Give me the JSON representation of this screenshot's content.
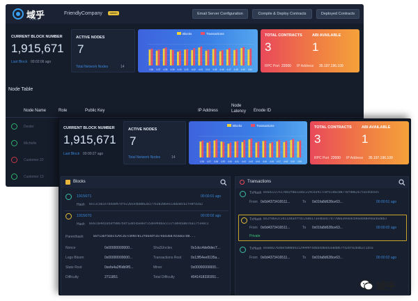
{
  "app": {
    "logo_text": "域乎",
    "logo_sub": "YUHU",
    "company": "FriendlyCompany",
    "badge": "admin"
  },
  "nav": {
    "email_btn": "Email Server Configuration",
    "compile_btn": "Compile & Deploy Contracts",
    "deployed_btn": "Deployed Contracts"
  },
  "back": {
    "block_title": "CURRENT BLOCK NUMBER",
    "block_number": "1,915,671",
    "last_block_label": "Last Block",
    "last_block_time": "00:02:06 ago",
    "nodes_title": "ACTIVE NODES",
    "nodes_count": "7",
    "total_nodes_label": "Total Network Nodes",
    "total_nodes_value": "14",
    "contracts_title": "TOTAL CONTRACTS",
    "contracts_value": "3",
    "abi_title": "ABI AVAILABLE",
    "abi_value": "1",
    "rpc_label": "RPC Port",
    "rpc_value": "22000",
    "ip_label": "IP Address",
    "ip_value": "35.197.196.109",
    "node_table_title": "Node Table",
    "node_cols": [
      "Node Name",
      "Role",
      "Public Key",
      "IP Address",
      "Node Latency",
      "Enode ID"
    ],
    "node_rows": [
      "Dexter",
      "Michelle",
      "Customer 22",
      "Customer 13"
    ]
  },
  "front": {
    "block_title": "CURRENT BLOCK NUMBER",
    "block_number": "1,915,671",
    "last_block_label": "Last Block",
    "last_block_time": "00:00:27 ago",
    "nodes_title": "ACTIVE NODES",
    "nodes_count": "7",
    "total_nodes_label": "Total Network Nodes",
    "total_nodes_value": "14",
    "contracts_title": "TOTAL CONTRACTS",
    "contracts_value": "3",
    "abi_title": "ABI AVAILABLE",
    "abi_value": "1",
    "rpc_label": "RPC Port",
    "rpc_value": "22000",
    "ip_label": "IP Address",
    "ip_value": "35.197.196.109",
    "blocks_title": "Blocks",
    "blocks": [
      {
        "number": "1915671",
        "time": "00:00:01 ago",
        "hash_label": "Hash",
        "hash": "0xc3ca61e7bda8974fe2201e4b00620177b30206ee13bba8c61fe8fd3a2"
      },
      {
        "number": "1915670",
        "time": "00:00:02 ago",
        "hash_label": "Hash",
        "hash": "0xbcde9d1058f90b7b4fa3054ae0ef15de994bacc11f3094a8076a17f3e0c2"
      }
    ],
    "block_detail": {
      "parenthash_label": "Parenthash",
      "parenthash": "0xf1a6f5bbc429c267c0987013fb64df16746d3607b56ba7d0...",
      "rows": [
        {
          "l1": "Nonce",
          "v1": "0x00000000000...",
          "l2": "Sha3Uncles",
          "v2": "0x1dcc4de8dec7..."
        },
        {
          "l1": "Logs Bloom",
          "v1": "0x00000000000...",
          "l2": "Transactions Root",
          "v2": "0x13f54ee9135a..."
        },
        {
          "l1": "State Root",
          "v1": "0xefa4a2f6db9f0...",
          "l2": "Miner",
          "v2": "0x00000000000..."
        },
        {
          "l1": "Difficulty",
          "v1": "2711851",
          "l2": "Total Difficulty",
          "v2": "4041418330351..."
        }
      ]
    },
    "tx_title": "Transactions",
    "transactions": [
      {
        "hash_label": "TxHash",
        "hash": "0x6d2227e17083f0033a6c229cd3917c0fe1d6c00778fd862675acd5b5e5",
        "from_label": "From",
        "from": "0x0d4373416511...",
        "to_label": "To",
        "to": "0x01fa8d628ce63...",
        "time": "00:00:51 ago",
        "status": ""
      },
      {
        "hash_label": "TxHash",
        "hash": "0x2f86e2c3411d4a4ffdc2ad6173e4ba4c747700a39ebdcb9aeb88e9aa4ad8b3",
        "from_label": "From",
        "from": "0x0d4373416511...",
        "to_label": "To",
        "to": "0x01fa8d628ce63...",
        "time": "00:00:02 ago",
        "status": "Private"
      },
      {
        "hash_label": "TxHash",
        "hash": "0x60827640e5088d43129999f4d6b4d84d3a0d8b7fd2bf82bdb2c1a5a",
        "from_label": "From",
        "from": "0x0d4373416511...",
        "to_label": "To",
        "to": "0x01fa8d628ce63...",
        "time": "00:00:02 ago",
        "status": ""
      }
    ]
  },
  "watermark": "域乎",
  "chart_data": {
    "type": "bar",
    "title": "",
    "series": [
      {
        "name": "Blocks",
        "values": [
          30,
          28,
          32,
          30,
          26,
          30,
          29,
          34,
          28,
          31,
          27,
          30,
          29,
          33,
          30
        ]
      },
      {
        "name": "Transactions",
        "values": [
          32,
          30,
          34,
          29,
          28,
          31,
          33,
          36,
          30,
          32,
          29,
          33,
          31,
          35,
          32
        ]
      }
    ],
    "categories": [
      "4:36",
      "4:37",
      "4:38",
      "4:39",
      "4:40",
      "4:41",
      "4:42",
      "4:43",
      "4:44",
      "4:45",
      "4:46",
      "4:47",
      "4:48",
      "4:49",
      "4:50"
    ],
    "ylim": [
      0,
      50
    ],
    "legend": "top",
    "colors": {
      "Blocks": "#f2d13b",
      "Transactions": "#e8506a"
    }
  },
  "colors": {
    "background": "#151c2a",
    "accent_blue": "#3b86d9",
    "gradient_start": "#e9495a",
    "gradient_end": "#f4a23a"
  }
}
